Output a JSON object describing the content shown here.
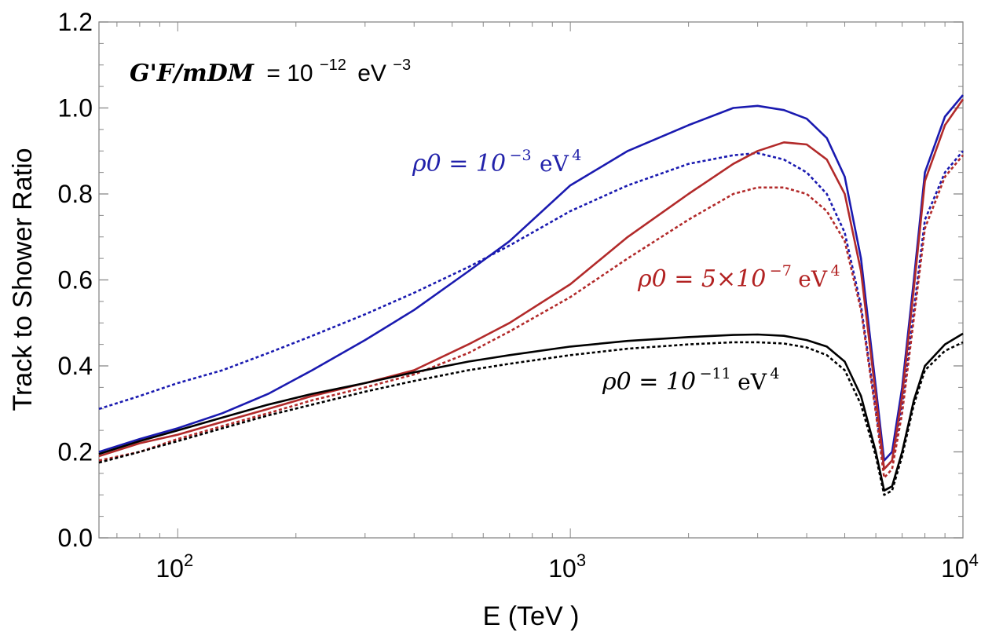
{
  "chart_data": {
    "type": "line",
    "title": "",
    "xlabel": "E (TeV )",
    "ylabel": "Track  to Shower  Ratio",
    "xscale": "log",
    "xlim": [
      63,
      10000
    ],
    "ylim": [
      0.0,
      1.2
    ],
    "yticks": [
      "0.0",
      "0.2",
      "0.4",
      "0.6",
      "0.8",
      "1.0",
      "1.2"
    ],
    "xticks": [
      {
        "value": 100,
        "base": "10",
        "exp": "2"
      },
      {
        "value": 1000,
        "base": "10",
        "exp": "3"
      },
      {
        "value": 10000,
        "base": "10",
        "exp": "4"
      }
    ],
    "legend": "none",
    "grid": false,
    "header_annotation": {
      "lhs": "G'F/mDM",
      "eq": "= 10",
      "exp": "−12",
      "unit": "eV",
      "unit_exp": "−3"
    },
    "annotations": [
      {
        "name": "rho-blue",
        "text_main": "ρ0 = 10",
        "exp": "−3",
        "unit": "eV",
        "unit_exp": "4",
        "color": "#2222aa"
      },
      {
        "name": "rho-red",
        "text_main": "ρ0 = 5×10",
        "exp": "−7",
        "unit": "eV",
        "unit_exp": "4",
        "color": "#b22222"
      },
      {
        "name": "rho-black",
        "text_main": "ρ0 = 10",
        "exp": "−11",
        "unit": "eV",
        "unit_exp": "4",
        "color": "#000000"
      }
    ],
    "series": [
      {
        "name": "rho 1e-3 solid",
        "color": "#1a1ab0",
        "dash": false,
        "x": [
          63,
          80,
          100,
          130,
          170,
          220,
          300,
          400,
          550,
          700,
          1000,
          1400,
          2000,
          2600,
          3000,
          3500,
          4000,
          4500,
          5000,
          5500,
          6000,
          6300,
          6600,
          7000,
          7500,
          8000,
          9000,
          10000
        ],
        "y": [
          0.2,
          0.23,
          0.255,
          0.29,
          0.335,
          0.39,
          0.46,
          0.53,
          0.62,
          0.69,
          0.82,
          0.9,
          0.96,
          1.0,
          1.005,
          0.995,
          0.975,
          0.93,
          0.84,
          0.65,
          0.35,
          0.18,
          0.2,
          0.35,
          0.6,
          0.85,
          0.98,
          1.03
        ]
      },
      {
        "name": "rho 1e-3 dotted",
        "color": "#1a1ab0",
        "dash": true,
        "x": [
          63,
          80,
          100,
          130,
          170,
          220,
          300,
          400,
          550,
          700,
          1000,
          1400,
          2000,
          2600,
          3000,
          3500,
          4000,
          4500,
          5000,
          5500,
          6000,
          6300,
          6600,
          7000,
          7500,
          8000,
          9000,
          10000
        ],
        "y": [
          0.3,
          0.33,
          0.36,
          0.39,
          0.43,
          0.47,
          0.52,
          0.57,
          0.63,
          0.68,
          0.76,
          0.82,
          0.87,
          0.89,
          0.895,
          0.88,
          0.85,
          0.8,
          0.71,
          0.54,
          0.3,
          0.16,
          0.18,
          0.31,
          0.53,
          0.74,
          0.85,
          0.9
        ]
      },
      {
        "name": "rho 5e-7 solid",
        "color": "#b22a2a",
        "dash": false,
        "x": [
          63,
          80,
          100,
          130,
          170,
          220,
          300,
          400,
          550,
          700,
          1000,
          1400,
          2000,
          2600,
          3000,
          3500,
          4000,
          4500,
          5000,
          5500,
          6000,
          6300,
          6600,
          7000,
          7500,
          8000,
          9000,
          10000
        ],
        "y": [
          0.19,
          0.22,
          0.24,
          0.27,
          0.3,
          0.33,
          0.36,
          0.39,
          0.45,
          0.5,
          0.59,
          0.7,
          0.8,
          0.87,
          0.9,
          0.92,
          0.915,
          0.88,
          0.8,
          0.62,
          0.33,
          0.16,
          0.18,
          0.33,
          0.58,
          0.83,
          0.96,
          1.02
        ]
      },
      {
        "name": "rho 5e-7 dotted",
        "color": "#b22a2a",
        "dash": true,
        "x": [
          63,
          80,
          100,
          130,
          170,
          220,
          300,
          400,
          550,
          700,
          1000,
          1400,
          2000,
          2600,
          3000,
          3500,
          4000,
          4500,
          5000,
          5500,
          6000,
          6300,
          6600,
          7000,
          7500,
          8000,
          9000,
          10000
        ],
        "y": [
          0.18,
          0.2,
          0.23,
          0.26,
          0.29,
          0.32,
          0.35,
          0.38,
          0.43,
          0.48,
          0.56,
          0.65,
          0.74,
          0.8,
          0.815,
          0.815,
          0.8,
          0.76,
          0.69,
          0.53,
          0.29,
          0.14,
          0.16,
          0.29,
          0.51,
          0.72,
          0.84,
          0.89
        ]
      },
      {
        "name": "rho 1e-11 solid",
        "color": "#000000",
        "dash": false,
        "x": [
          63,
          80,
          100,
          130,
          170,
          220,
          300,
          400,
          550,
          700,
          1000,
          1400,
          2000,
          2600,
          3000,
          3500,
          4000,
          4500,
          5000,
          5500,
          6000,
          6300,
          6600,
          7000,
          7500,
          8000,
          9000,
          10000
        ],
        "y": [
          0.195,
          0.225,
          0.25,
          0.28,
          0.31,
          0.335,
          0.36,
          0.385,
          0.41,
          0.425,
          0.445,
          0.458,
          0.467,
          0.472,
          0.473,
          0.47,
          0.46,
          0.445,
          0.41,
          0.33,
          0.2,
          0.11,
          0.12,
          0.2,
          0.32,
          0.4,
          0.45,
          0.475
        ]
      },
      {
        "name": "rho 1e-11 dotted",
        "color": "#000000",
        "dash": true,
        "x": [
          63,
          80,
          100,
          130,
          170,
          220,
          300,
          400,
          550,
          700,
          1000,
          1400,
          2000,
          2600,
          3000,
          3500,
          4000,
          4500,
          5000,
          5500,
          6000,
          6300,
          6600,
          7000,
          7500,
          8000,
          9000,
          10000
        ],
        "y": [
          0.175,
          0.2,
          0.225,
          0.255,
          0.285,
          0.31,
          0.34,
          0.365,
          0.39,
          0.405,
          0.425,
          0.44,
          0.45,
          0.455,
          0.455,
          0.452,
          0.443,
          0.425,
          0.39,
          0.31,
          0.19,
          0.1,
          0.11,
          0.19,
          0.31,
          0.39,
          0.435,
          0.455
        ]
      }
    ]
  }
}
